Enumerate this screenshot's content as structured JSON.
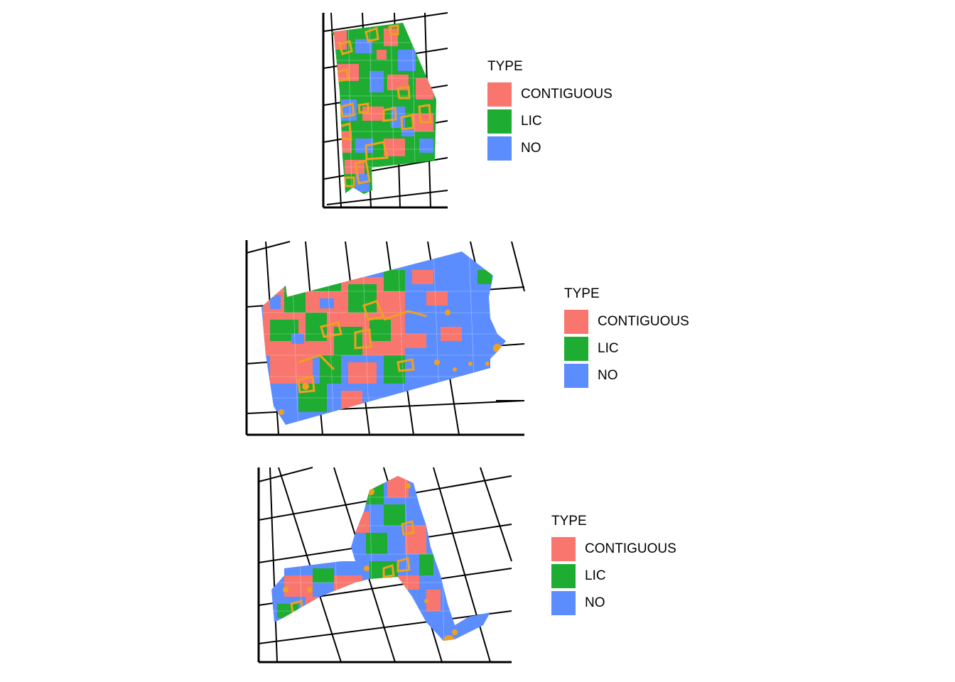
{
  "legend": {
    "title": "TYPE",
    "entries": [
      {
        "label": "CONTIGUOUS",
        "color": "#F8766D"
      },
      {
        "label": "LIC",
        "color": "#1EAD32"
      },
      {
        "label": "NO",
        "color": "#5C8DFF"
      }
    ]
  },
  "colors": {
    "contiguous": "#F8766D",
    "lic": "#1EAD32",
    "no": "#5C8DFF",
    "highlight_outline": "#F0A020",
    "graticule": "#000000",
    "background": "#FFFFFF"
  },
  "maps": [
    {
      "id": "state-1",
      "legend_title": "TYPE"
    },
    {
      "id": "state-2",
      "legend_title": "TYPE"
    },
    {
      "id": "state-3",
      "legend_title": "TYPE"
    }
  ]
}
